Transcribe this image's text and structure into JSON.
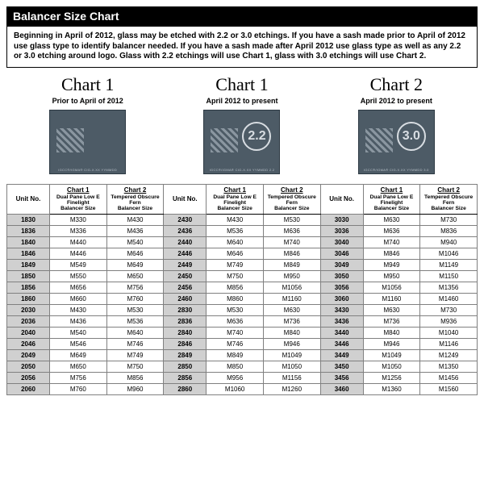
{
  "title": "Balancer Size Chart",
  "intro": "Beginning in April of 2012, glass may be etched with 2.2 or 3.0 etchings.  If you have a sash made prior to April of 2012 use glass type to identify balancer needed.  If you have a sash made after April 2012 use glass type as well as any 2.2 or 3.0 etching around logo. Glass with 2.2 etchings will use Chart 1, glass with 3.0 etchings will use Chart 2.",
  "charts": [
    {
      "title": "Chart 1",
      "sub": "Prior to April of 2012",
      "circle": ""
    },
    {
      "title": "Chart 1",
      "sub": "April 2012 to present",
      "circle": "2.2"
    },
    {
      "title": "Chart 2",
      "sub": "April 2012 to present",
      "circle": "3.0"
    }
  ],
  "headers": {
    "unit": "Unit No.",
    "c1_top": "Chart 1",
    "c1_mid": "Dual Pane Low E Finelight",
    "c1_bot": "Balancer Size",
    "c2_top": "Chart 2",
    "c2_mid": "Tempered Obscure Fern",
    "c2_bot": "Balancer Size"
  },
  "rows": [
    [
      "1830",
      "M330",
      "M430",
      "2430",
      "M430",
      "M530",
      "3030",
      "M630",
      "M730"
    ],
    [
      "1836",
      "M336",
      "M436",
      "2436",
      "M536",
      "M636",
      "3036",
      "M636",
      "M836"
    ],
    [
      "1840",
      "M440",
      "M540",
      "2440",
      "M640",
      "M740",
      "3040",
      "M740",
      "M940"
    ],
    [
      "1846",
      "M446",
      "M646",
      "2446",
      "M646",
      "M846",
      "3046",
      "M846",
      "M1046"
    ],
    [
      "1849",
      "M549",
      "M649",
      "2449",
      "M749",
      "M849",
      "3049",
      "M949",
      "M1149"
    ],
    [
      "1850",
      "M550",
      "M650",
      "2450",
      "M750",
      "M950",
      "3050",
      "M950",
      "M1150"
    ],
    [
      "1856",
      "M656",
      "M756",
      "2456",
      "M856",
      "M1056",
      "3056",
      "M1056",
      "M1356"
    ],
    [
      "1860",
      "M660",
      "M760",
      "2460",
      "M860",
      "M1160",
      "3060",
      "M1160",
      "M1460"
    ],
    [
      "2030",
      "M430",
      "M530",
      "2830",
      "M530",
      "M630",
      "3430",
      "M630",
      "M730"
    ],
    [
      "2036",
      "M436",
      "M536",
      "2836",
      "M636",
      "M736",
      "3436",
      "M736",
      "M936"
    ],
    [
      "2040",
      "M540",
      "M640",
      "2840",
      "M740",
      "M840",
      "3440",
      "M840",
      "M1040"
    ],
    [
      "2046",
      "M546",
      "M746",
      "2846",
      "M746",
      "M946",
      "3446",
      "M946",
      "M1146"
    ],
    [
      "2049",
      "M649",
      "M749",
      "2849",
      "M849",
      "M1049",
      "3449",
      "M1049",
      "M1249"
    ],
    [
      "2050",
      "M650",
      "M750",
      "2850",
      "M850",
      "M1050",
      "3450",
      "M1050",
      "M1350"
    ],
    [
      "2056",
      "M756",
      "M856",
      "2856",
      "M956",
      "M1156",
      "3456",
      "M1256",
      "M1456"
    ],
    [
      "2060",
      "M760",
      "M960",
      "2860",
      "M1060",
      "M1260",
      "3460",
      "M1360",
      "M1560"
    ]
  ],
  "colors": {
    "title_bg": "#000000",
    "title_fg": "#ffffff",
    "unit_bg": "#d0d0d0",
    "border": "#808080",
    "badge_bg": "#4d5b66"
  }
}
